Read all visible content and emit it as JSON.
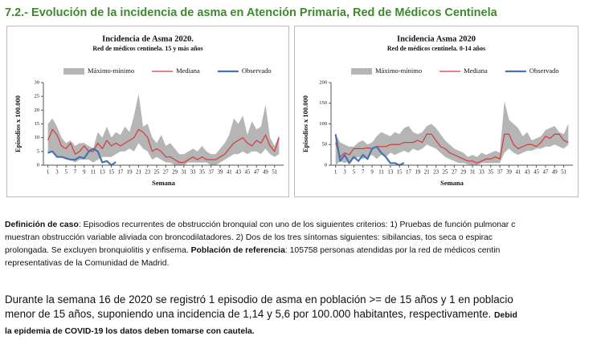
{
  "heading": "7.2.- Evolución de la incidencia de asma en Atención Primaria, Red de Médicos Centinela",
  "chart_data": [
    {
      "type": "line",
      "title": "Incidencia  de Asma 2020.",
      "subtitle": "Red de médicos  centinela. 15 y más años",
      "ylabel": "Episodios x 100.000",
      "xlabel": "Semana",
      "x": [
        1,
        2,
        3,
        4,
        5,
        6,
        7,
        8,
        9,
        10,
        11,
        12,
        13,
        14,
        15,
        16,
        17,
        18,
        19,
        20,
        21,
        22,
        23,
        24,
        25,
        26,
        27,
        28,
        29,
        30,
        31,
        32,
        33,
        34,
        35,
        36,
        37,
        38,
        39,
        40,
        41,
        42,
        43,
        44,
        45,
        46,
        47,
        48,
        49,
        50,
        51,
        52
      ],
      "xlim": [
        0,
        53
      ],
      "xticks": [
        1,
        3,
        5,
        7,
        9,
        11,
        13,
        15,
        17,
        19,
        21,
        23,
        25,
        27,
        29,
        31,
        33,
        35,
        37,
        39,
        41,
        43,
        45,
        47,
        49,
        51
      ],
      "ylim": [
        0,
        30
      ],
      "yticks": [
        0,
        5,
        10,
        15,
        20,
        25,
        30
      ],
      "series": [
        {
          "name": "Máximo-mínimo",
          "kind": "band",
          "color": "#b5b5b5",
          "values": [
            15,
            17,
            14,
            10,
            8,
            9,
            7,
            8,
            8,
            7,
            6,
            12,
            10,
            14,
            10,
            12,
            11,
            14,
            12,
            18,
            26,
            14,
            15,
            10,
            8,
            11,
            7,
            8,
            6,
            4,
            4,
            5,
            6,
            5,
            7,
            5,
            4,
            4,
            6,
            8,
            11,
            17,
            15,
            18,
            11,
            16,
            13,
            14,
            22,
            10,
            7,
            11
          ],
          "lower": [
            4,
            5,
            3,
            3,
            2,
            2,
            1,
            2,
            2,
            2,
            1,
            2,
            3,
            3,
            3,
            4,
            5,
            5,
            6,
            5,
            8,
            6,
            5,
            2,
            3,
            2,
            1,
            1,
            0,
            0,
            0,
            1,
            1,
            1,
            1,
            1,
            0,
            0,
            1,
            2,
            3,
            4,
            4,
            5,
            4,
            5,
            5,
            4,
            6,
            4,
            3,
            4
          ]
        },
        {
          "name": "Mediana",
          "kind": "line",
          "color": "#d43a3a",
          "width": 1.2,
          "values": [
            9,
            13,
            11,
            7,
            6,
            8,
            4,
            5,
            7,
            5,
            5,
            8,
            6,
            9,
            7,
            8,
            7,
            8,
            9,
            10,
            13,
            12,
            10,
            5,
            6,
            5,
            3,
            3,
            2,
            1,
            1,
            2,
            3,
            2,
            3,
            2,
            2,
            2,
            3,
            4,
            6,
            8,
            9,
            10,
            8,
            7,
            9,
            8,
            11,
            7,
            5,
            10
          ]
        },
        {
          "name": "Observado",
          "kind": "line",
          "color": "#4a72b0",
          "width": 2.2,
          "values": [
            4.5,
            5,
            3,
            3,
            2.5,
            2,
            2,
            3,
            2.5,
            5,
            6,
            5,
            1,
            1.5,
            0,
            1.14,
            null,
            null,
            null,
            null,
            null,
            null,
            null,
            null,
            null,
            null,
            null,
            null,
            null,
            null,
            null,
            null,
            null,
            null,
            null,
            null,
            null,
            null,
            null,
            null,
            null,
            null,
            null,
            null,
            null,
            null,
            null,
            null,
            null,
            null,
            null,
            null
          ]
        }
      ]
    },
    {
      "type": "line",
      "title": "Incidencia Asma 2020",
      "subtitle": "Red de médicos  centinela. 0-14 años",
      "ylabel": "Episodios x 100.000",
      "xlabel": "Semana",
      "x": [
        1,
        2,
        3,
        4,
        5,
        6,
        7,
        8,
        9,
        10,
        11,
        12,
        13,
        14,
        15,
        16,
        17,
        18,
        19,
        20,
        21,
        22,
        23,
        24,
        25,
        26,
        27,
        28,
        29,
        30,
        31,
        32,
        33,
        34,
        35,
        36,
        37,
        38,
        39,
        40,
        41,
        42,
        43,
        44,
        45,
        46,
        47,
        48,
        49,
        50,
        51,
        52
      ],
      "xlim": [
        0,
        53
      ],
      "xticks": [
        1,
        3,
        5,
        7,
        9,
        11,
        13,
        15,
        17,
        19,
        21,
        23,
        25,
        27,
        29,
        31,
        33,
        35,
        37,
        39,
        41,
        43,
        45,
        47,
        49,
        51
      ],
      "ylim": [
        0,
        200
      ],
      "yticks": [
        0,
        50,
        100,
        150,
        200
      ],
      "series": [
        {
          "name": "Máximo-mínimo",
          "kind": "band",
          "color": "#b5b5b5",
          "values": [
            75,
            55,
            50,
            45,
            45,
            55,
            60,
            50,
            55,
            70,
            80,
            75,
            70,
            80,
            75,
            90,
            95,
            80,
            75,
            80,
            95,
            100,
            90,
            75,
            60,
            50,
            40,
            35,
            30,
            20,
            25,
            20,
            30,
            25,
            30,
            35,
            30,
            155,
            110,
            100,
            90,
            70,
            80,
            60,
            65,
            70,
            85,
            90,
            95,
            80,
            75,
            100
          ],
          "lower": [
            0,
            10,
            5,
            10,
            15,
            20,
            15,
            20,
            25,
            15,
            25,
            20,
            30,
            25,
            30,
            35,
            30,
            40,
            35,
            40,
            50,
            45,
            40,
            30,
            20,
            15,
            10,
            5,
            5,
            2,
            0,
            0,
            5,
            5,
            5,
            5,
            5,
            30,
            40,
            30,
            25,
            30,
            35,
            35,
            40,
            40,
            45,
            45,
            50,
            45,
            40,
            50
          ]
        },
        {
          "name": "Mediana",
          "kind": "line",
          "color": "#d43a3a",
          "width": 1.2,
          "values": [
            55,
            20,
            30,
            25,
            40,
            40,
            40,
            42,
            40,
            45,
            45,
            45,
            50,
            50,
            50,
            55,
            55,
            55,
            60,
            55,
            75,
            75,
            60,
            45,
            40,
            30,
            25,
            20,
            15,
            10,
            10,
            5,
            10,
            15,
            15,
            20,
            15,
            75,
            75,
            50,
            40,
            45,
            50,
            50,
            45,
            55,
            70,
            65,
            75,
            75,
            60,
            55
          ]
        },
        {
          "name": "Observado",
          "kind": "line",
          "color": "#4a72b0",
          "width": 2.2,
          "values": [
            75,
            10,
            25,
            5,
            20,
            10,
            25,
            15,
            40,
            45,
            30,
            20,
            5,
            5,
            0,
            5.6,
            null,
            null,
            null,
            null,
            null,
            null,
            null,
            null,
            null,
            null,
            null,
            null,
            null,
            null,
            null,
            null,
            null,
            null,
            null,
            null,
            null,
            null,
            null,
            null,
            null,
            null,
            null,
            null,
            null,
            null,
            null,
            null,
            null,
            null,
            null,
            null
          ]
        }
      ]
    }
  ],
  "paragraphs": [
    {
      "size": "small",
      "lines": [
        [
          {
            "text": "Definición de caso",
            "bold": true
          },
          {
            "text": ": Episodios recurrentes de obstrucción bronquial con uno de los siguientes criterios: 1) Pruebas de función pulmonar c"
          }
        ],
        [
          {
            "text": "muestran obstrucción variable aliviada con broncodilatadores. 2) Dos de los tres síntomas siguientes: sibilancias, tos seca o espirac"
          }
        ],
        [
          {
            "text": "prolongada. Se excluyen bronquiolitis y enfisema. "
          },
          {
            "text": "Población de referencia",
            "bold": true
          },
          {
            "text": ": 105758 personas atendidas por la red de médicos centin"
          }
        ],
        [
          {
            "text": "representativas de la Comunidad de Madrid."
          }
        ]
      ]
    },
    {
      "size": "large",
      "lines": [
        [
          {
            "text": "Durante la semana 16 de 2020 se registró 1 episodio de asma en población >= de 15 años y 1 en poblacio"
          }
        ],
        [
          {
            "text": "menor de 15 años, suponiendo una incidencia de 1,14 y 5,6 por 100.000 habitantes, respectivamente. "
          },
          {
            "text": "Debid",
            "bold": true
          }
        ],
        [
          {
            "text": "la epidemia de COVID-19 los datos deben tomarse con cautela.",
            "bold": true
          }
        ]
      ]
    }
  ]
}
